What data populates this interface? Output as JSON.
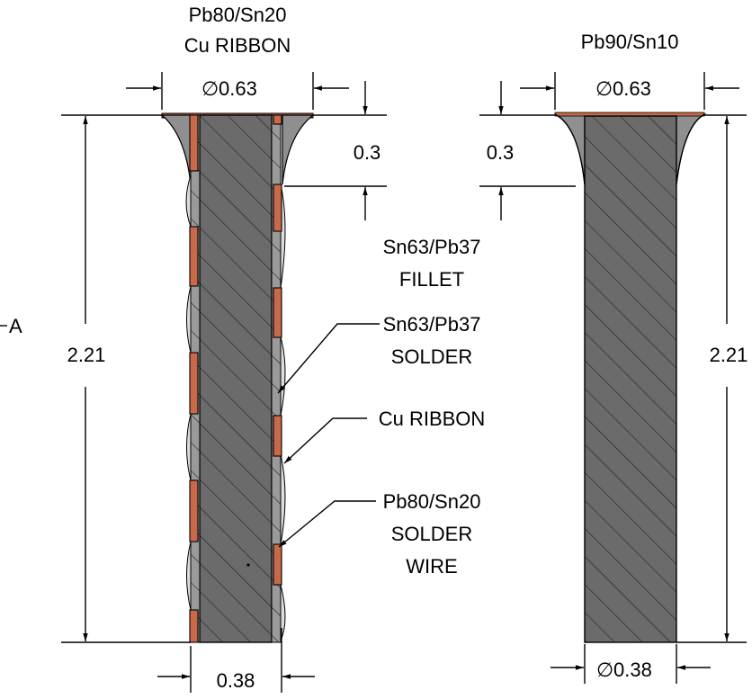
{
  "colors": {
    "wire_fill": "#6b6b6b",
    "copper_ribbon": "#c8694a",
    "solder_fillet": "#9a9a9a",
    "solder_light": "#dcdcdc",
    "hatch": "#1a1a1a"
  },
  "left_column": {
    "title_line1": "Pb80/Sn20",
    "title_line2": "Cu RIBBON",
    "top_diameter": "0.63",
    "fillet_height": "0.3",
    "length": "2.21",
    "bottom_width": "0.38",
    "section_marker": "A"
  },
  "right_column": {
    "title": "Pb90/Sn10",
    "top_diameter": "0.63",
    "fillet_height": "0.3",
    "length": "2.21",
    "bottom_diameter": "0.38"
  },
  "callouts": {
    "fillet_line1": "Sn63/Pb37",
    "fillet_line2": "FILLET",
    "solder_line1": "Sn63/Pb37",
    "solder_line2": "SOLDER",
    "ribbon": "Cu RIBBON",
    "wire_line1": "Pb80/Sn20",
    "wire_line2": "SOLDER",
    "wire_line3": "WIRE"
  },
  "diameter_symbol": "∅"
}
